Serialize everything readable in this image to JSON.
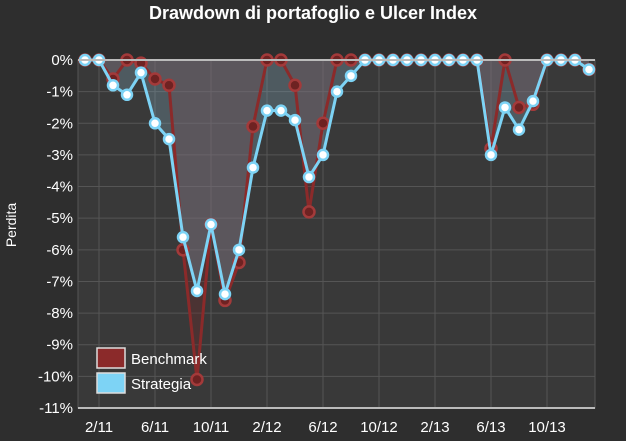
{
  "chart_data": {
    "type": "line",
    "title": "Drawdown di portafoglio e Ulcer Index",
    "ylabel": "Perdita",
    "xlabel": "",
    "ylim": [
      -11,
      0
    ],
    "y_ticks": [
      "0%",
      "-1%",
      "-2%",
      "-3%",
      "-4%",
      "-5%",
      "-6%",
      "-7%",
      "-8%",
      "-9%",
      "-10%",
      "-11%"
    ],
    "x_ticks": [
      {
        "label": "2/11",
        "x": 1
      },
      {
        "label": "6/11",
        "x": 5
      },
      {
        "label": "10/11",
        "x": 9
      },
      {
        "label": "2/12",
        "x": 13
      },
      {
        "label": "6/12",
        "x": 17
      },
      {
        "label": "10/12",
        "x": 21
      },
      {
        "label": "2/13",
        "x": 25
      },
      {
        "label": "6/13",
        "x": 29
      },
      {
        "label": "10/13",
        "x": 33
      }
    ],
    "grid": true,
    "legend_position": "bottom-left",
    "series": [
      {
        "name": "Benchmark",
        "color": "#8b2a2a",
        "values": [
          0,
          0,
          -0.6,
          0,
          -0.1,
          -0.6,
          -0.8,
          -6.0,
          -10.1,
          -5.2,
          -7.6,
          -6.4,
          -2.1,
          0,
          0,
          -0.8,
          -4.8,
          -2.0,
          0,
          0,
          0,
          0,
          0,
          0,
          0,
          0,
          0,
          0,
          0,
          -2.8,
          0,
          -1.5,
          -1.4,
          0,
          0,
          0,
          -0.3
        ]
      },
      {
        "name": "Strategia",
        "color": "#7dd3f5",
        "values": [
          0,
          0,
          -0.8,
          -1.1,
          -0.4,
          -2.0,
          -2.5,
          -5.6,
          -7.3,
          -5.2,
          -7.4,
          -6.0,
          -3.4,
          -1.6,
          -1.6,
          -1.9,
          -3.7,
          -3.0,
          -1.0,
          -0.5,
          0,
          0,
          0,
          0,
          0,
          0,
          0,
          0,
          0,
          -3.0,
          -1.5,
          -2.2,
          -1.3,
          0,
          0,
          0,
          -0.3
        ]
      }
    ]
  }
}
